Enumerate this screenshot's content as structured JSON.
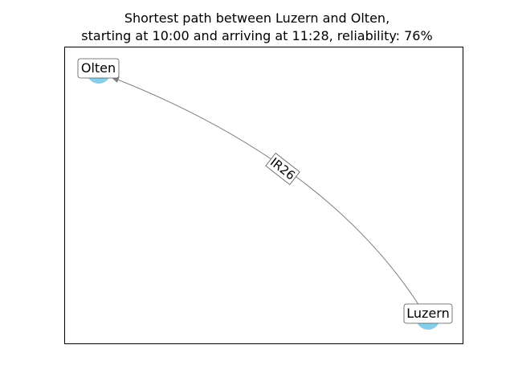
{
  "title": {
    "line1": "Shortest path between Luzern and Olten,",
    "line2": "starting at 10:00 and arriving at 11:28, reliability: 76%"
  },
  "graph": {
    "nodes": [
      {
        "id": "olten",
        "label": "Olten"
      },
      {
        "id": "luzern",
        "label": "Luzern"
      }
    ],
    "edges": [
      {
        "from": "luzern",
        "to": "olten",
        "label": "IR26"
      }
    ],
    "colors": {
      "node": "#87ceeb",
      "edge": "#808080",
      "frame": "#000000",
      "label_box_border": "#555555"
    }
  }
}
